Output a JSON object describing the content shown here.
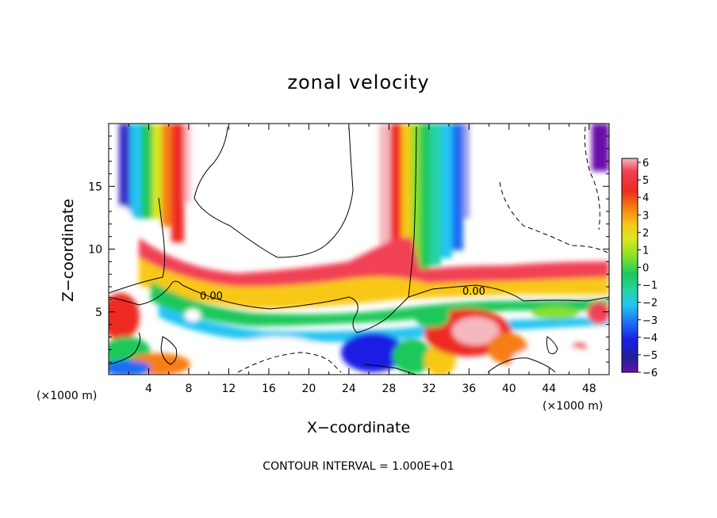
{
  "chart_data": {
    "type": "heatmap",
    "title": "zonal velocity",
    "xlabel": "X−coordinate",
    "ylabel": "Z−coordinate",
    "x_unit_left": "(×1000 m)",
    "x_unit_right": "(×1000 m)",
    "xlim": [
      0,
      50
    ],
    "ylim": [
      0,
      20
    ],
    "xticks": [
      4,
      8,
      12,
      16,
      20,
      24,
      28,
      32,
      36,
      40,
      44,
      48
    ],
    "yticks": [
      5,
      10,
      15
    ],
    "colorbar": {
      "ticks": [
        "6",
        "5",
        "4",
        "3",
        "2",
        "1",
        "0",
        "−1",
        "−2",
        "−3",
        "−4",
        "−5",
        "−6"
      ],
      "range": [
        -6,
        6
      ],
      "colors": [
        "#f2a6b0",
        "#f24055",
        "#ee2a20",
        "#f67e12",
        "#f9c818",
        "#d7e81f",
        "#86e02d",
        "#1ec85a",
        "#27d3a6",
        "#21c4f2",
        "#1e6cf4",
        "#1a1ee5",
        "#202098",
        "#6a10aa"
      ]
    },
    "contour_labels": [
      "0.00",
      "0.00"
    ],
    "footer": "CONTOUR INTERVAL = 1.000E+01"
  }
}
